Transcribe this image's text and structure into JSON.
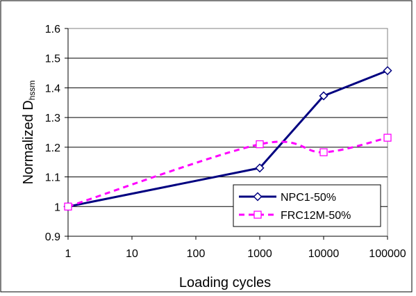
{
  "chart_data": {
    "type": "line",
    "title": "",
    "xlabel": "Loading cycles",
    "ylabel_main": "Normalized D",
    "ylabel_sub": "hssm",
    "x_scale": "log",
    "x": [
      1,
      10,
      100,
      1000,
      10000,
      100000
    ],
    "x_tick_labels": [
      "1",
      "10",
      "100",
      "1000",
      "10000",
      "100000"
    ],
    "ylim": [
      0.9,
      1.6
    ],
    "y_ticks": [
      0.9,
      1.0,
      1.1,
      1.2,
      1.3,
      1.4,
      1.5,
      1.6
    ],
    "y_tick_labels": [
      "0.9",
      "1",
      "1.1",
      "1.2",
      "1.3",
      "1.4",
      "1.5",
      "1.6"
    ],
    "grid": "horizontal",
    "legend_position": "bottom-right",
    "series": [
      {
        "name": "NPC1-50%",
        "x": [
          1,
          1000,
          10000,
          100000
        ],
        "values": [
          1.0,
          1.13,
          1.373,
          1.458
        ],
        "color": "#000080",
        "marker": "diamond",
        "line_style": "solid",
        "smooth": false
      },
      {
        "name": "FRC12M-50%",
        "x": [
          1,
          1000,
          10000,
          100000
        ],
        "values": [
          1.0,
          1.21,
          1.183,
          1.232
        ],
        "color": "#FF00FF",
        "marker": "square",
        "line_style": "dashed",
        "smooth": true
      }
    ]
  }
}
